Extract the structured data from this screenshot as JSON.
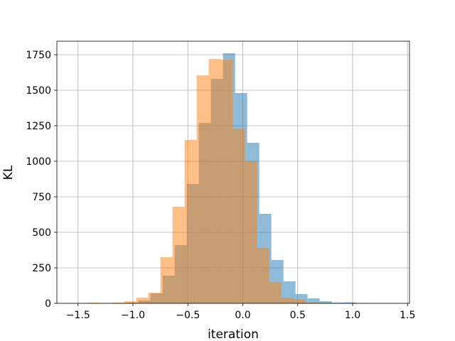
{
  "chart_data": {
    "type": "bar",
    "xlabel": "iteration",
    "ylabel": "KL",
    "xlim": [
      -1.7,
      1.52
    ],
    "ylim": [
      0,
      1750
    ],
    "x_ticks": [
      -1.5,
      -1.0,
      -0.5,
      0.0,
      0.5,
      1.0,
      1.5
    ],
    "x_tick_labels": [
      "−1.5",
      "−1.0",
      "−0.5",
      "0.0",
      "0.5",
      "1.0",
      "1.5"
    ],
    "y_ticks": [
      0,
      250,
      500,
      750,
      1000,
      1250,
      1500,
      1750
    ],
    "y_tick_labels": [
      "0",
      "250",
      "500",
      "750",
      "1000",
      "1250",
      "1500",
      "1750"
    ],
    "grid": true,
    "alpha": 0.5,
    "series": [
      {
        "color": "#1f77b4",
        "bin_edges": [
          -1.17,
          -1.06,
          -0.95,
          -0.84,
          -0.73,
          -0.62,
          -0.51,
          -0.4,
          -0.29,
          -0.18,
          -0.07,
          0.04,
          0.15,
          0.26,
          0.37,
          0.48,
          0.59,
          0.7,
          0.81,
          0.92,
          1.03,
          1.14
        ],
        "values": [
          2,
          5,
          20,
          70,
          195,
          410,
          840,
          1270,
          1580,
          1760,
          1480,
          1130,
          630,
          305,
          155,
          65,
          35,
          15,
          5,
          7,
          2
        ]
      },
      {
        "color": "#ff7f0e",
        "bin_edges": [
          -1.41,
          -1.3,
          -1.19,
          -1.08,
          -0.97,
          -0.86,
          -0.75,
          -0.64,
          -0.53,
          -0.42,
          -0.31,
          -0.2,
          -0.09,
          0.02,
          0.13,
          0.24,
          0.35,
          0.46,
          0.57,
          0.68,
          0.79,
          0.9
        ],
        "values": [
          4,
          2,
          5,
          15,
          40,
          75,
          325,
          680,
          1150,
          1605,
          1720,
          1715,
          1230,
          1000,
          390,
          150,
          40,
          30,
          5,
          3,
          1
        ]
      }
    ]
  }
}
